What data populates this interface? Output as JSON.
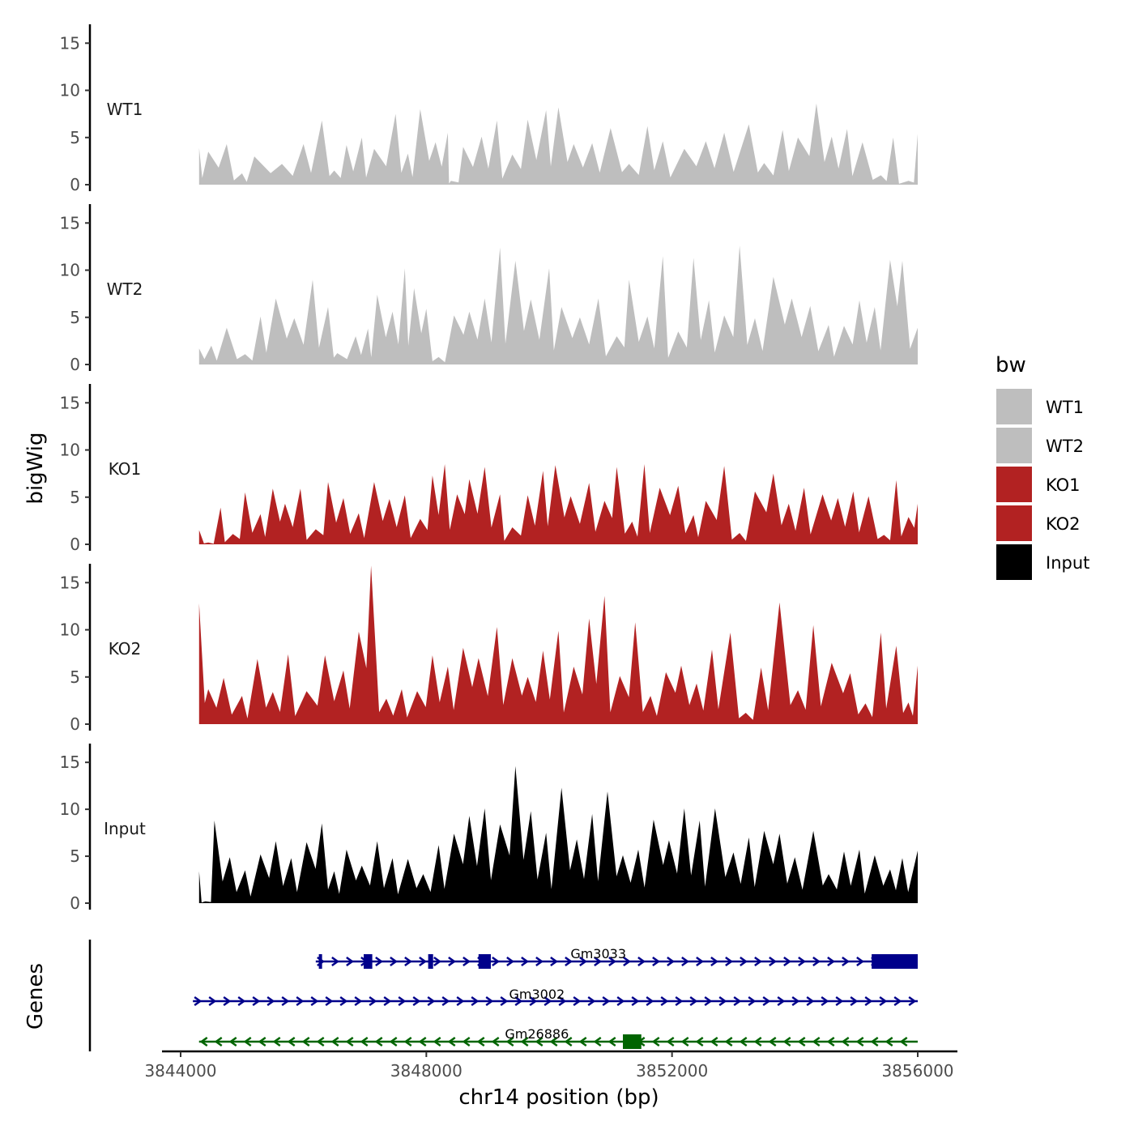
{
  "chart_data": {
    "type": "area",
    "ylabel": "bigWig",
    "gene_panel_label": "Genes",
    "xlabel": "chr14 position (bp)",
    "xlim": [
      3844000,
      3856000
    ],
    "x_data_range": [
      3844300,
      3856000
    ],
    "x_ticks": [
      3844000,
      3848000,
      3852000,
      3856000
    ],
    "x_tick_labels": [
      "3844000",
      "3848000",
      "3852000",
      "3856000"
    ],
    "ylim": [
      0,
      17
    ],
    "y_ticks": [
      0,
      5,
      10,
      15
    ],
    "y_tick_labels": [
      "0",
      "5",
      "10",
      "15"
    ],
    "legend": {
      "title": "bw",
      "position": "right",
      "entries": [
        {
          "label": "WT1",
          "color": "#BEBEBE"
        },
        {
          "label": "WT2",
          "color": "#BEBEBE"
        },
        {
          "label": "KO1",
          "color": "#B22222"
        },
        {
          "label": "KO2",
          "color": "#B22222"
        },
        {
          "label": "Input",
          "color": "#000000"
        }
      ]
    },
    "tracks": [
      {
        "name": "WT1",
        "color": "#BEBEBE",
        "peaks": [
          [
            3844300,
            3.9
          ],
          [
            3844450,
            3.5
          ],
          [
            3844750,
            4.3
          ],
          [
            3845000,
            1.2
          ],
          [
            3845200,
            3.0
          ],
          [
            3845650,
            2.2
          ],
          [
            3846000,
            4.3
          ],
          [
            3846300,
            6.8
          ],
          [
            3846500,
            1.5
          ],
          [
            3846700,
            4.2
          ],
          [
            3846950,
            5.0
          ],
          [
            3847150,
            3.8
          ],
          [
            3847500,
            7.5
          ],
          [
            3847700,
            3.3
          ],
          [
            3847900,
            8.0
          ],
          [
            3848150,
            4.5
          ],
          [
            3848350,
            5.5
          ],
          [
            3848400,
            0.4
          ],
          [
            3848600,
            4.0
          ],
          [
            3848900,
            5.1
          ],
          [
            3849150,
            6.8
          ],
          [
            3849400,
            3.2
          ],
          [
            3849650,
            6.9
          ],
          [
            3849950,
            7.9
          ],
          [
            3850150,
            8.2
          ],
          [
            3850400,
            4.3
          ],
          [
            3850700,
            4.4
          ],
          [
            3851000,
            6.0
          ],
          [
            3851300,
            2.2
          ],
          [
            3851600,
            6.2
          ],
          [
            3851850,
            4.6
          ],
          [
            3852200,
            3.8
          ],
          [
            3852550,
            4.6
          ],
          [
            3852850,
            5.5
          ],
          [
            3853250,
            6.4
          ],
          [
            3853500,
            2.3
          ],
          [
            3853800,
            5.8
          ],
          [
            3854050,
            5.0
          ],
          [
            3854350,
            8.6
          ],
          [
            3854600,
            5.1
          ],
          [
            3854850,
            5.9
          ],
          [
            3855100,
            4.5
          ],
          [
            3855400,
            1.0
          ],
          [
            3855600,
            5.0
          ],
          [
            3855850,
            0.4
          ],
          [
            3856000,
            5.4
          ]
        ]
      },
      {
        "name": "WT2",
        "color": "#BEBEBE",
        "peaks": [
          [
            3844300,
            1.7
          ],
          [
            3844500,
            2.0
          ],
          [
            3844750,
            3.9
          ],
          [
            3845050,
            1.1
          ],
          [
            3845300,
            5.1
          ],
          [
            3845550,
            7.0
          ],
          [
            3845850,
            4.9
          ],
          [
            3846150,
            9.0
          ],
          [
            3846400,
            6.1
          ],
          [
            3846550,
            1.2
          ],
          [
            3846850,
            3.0
          ],
          [
            3847050,
            3.8
          ],
          [
            3847200,
            7.4
          ],
          [
            3847450,
            5.6
          ],
          [
            3847650,
            10.2
          ],
          [
            3847800,
            8.1
          ],
          [
            3848000,
            5.9
          ],
          [
            3848200,
            0.8
          ],
          [
            3848450,
            5.2
          ],
          [
            3848700,
            5.6
          ],
          [
            3848950,
            7.0
          ],
          [
            3849200,
            12.4
          ],
          [
            3849450,
            11.0
          ],
          [
            3849700,
            6.9
          ],
          [
            3850000,
            10.2
          ],
          [
            3850200,
            6.1
          ],
          [
            3850500,
            5.0
          ],
          [
            3850800,
            7.0
          ],
          [
            3851100,
            3.0
          ],
          [
            3851300,
            9.0
          ],
          [
            3851600,
            5.1
          ],
          [
            3851850,
            11.5
          ],
          [
            3852100,
            3.5
          ],
          [
            3852350,
            11.3
          ],
          [
            3852600,
            6.8
          ],
          [
            3852850,
            5.2
          ],
          [
            3853100,
            12.6
          ],
          [
            3853350,
            4.9
          ],
          [
            3853650,
            9.3
          ],
          [
            3853950,
            7.0
          ],
          [
            3854250,
            6.2
          ],
          [
            3854550,
            4.2
          ],
          [
            3854800,
            4.1
          ],
          [
            3855050,
            6.8
          ],
          [
            3855300,
            6.1
          ],
          [
            3855550,
            11.1
          ],
          [
            3855750,
            11.0
          ],
          [
            3856000,
            3.9
          ]
        ]
      },
      {
        "name": "KO1",
        "color": "#B22222",
        "peaks": [
          [
            3844300,
            1.5
          ],
          [
            3844450,
            0.2
          ],
          [
            3844650,
            3.9
          ],
          [
            3844850,
            1.1
          ],
          [
            3845050,
            5.5
          ],
          [
            3845300,
            3.2
          ],
          [
            3845500,
            5.9
          ],
          [
            3845700,
            4.3
          ],
          [
            3845950,
            5.9
          ],
          [
            3846200,
            1.6
          ],
          [
            3846400,
            6.6
          ],
          [
            3846650,
            4.9
          ],
          [
            3846900,
            3.3
          ],
          [
            3847150,
            6.6
          ],
          [
            3847400,
            4.8
          ],
          [
            3847650,
            5.2
          ],
          [
            3847900,
            2.7
          ],
          [
            3848100,
            7.3
          ],
          [
            3848300,
            8.5
          ],
          [
            3848500,
            5.3
          ],
          [
            3848700,
            6.9
          ],
          [
            3848950,
            8.2
          ],
          [
            3849200,
            5.3
          ],
          [
            3849400,
            1.8
          ],
          [
            3849650,
            5.2
          ],
          [
            3849900,
            7.8
          ],
          [
            3850100,
            8.4
          ],
          [
            3850350,
            5.1
          ],
          [
            3850650,
            6.5
          ],
          [
            3850900,
            4.6
          ],
          [
            3851100,
            8.2
          ],
          [
            3851350,
            2.4
          ],
          [
            3851550,
            8.5
          ],
          [
            3851800,
            6.0
          ],
          [
            3852100,
            6.2
          ],
          [
            3852350,
            3.1
          ],
          [
            3852550,
            4.6
          ],
          [
            3852850,
            8.3
          ],
          [
            3853100,
            1.2
          ],
          [
            3853350,
            5.6
          ],
          [
            3853650,
            7.5
          ],
          [
            3853900,
            4.3
          ],
          [
            3854150,
            6.0
          ],
          [
            3854450,
            5.3
          ],
          [
            3854700,
            4.9
          ],
          [
            3854950,
            5.6
          ],
          [
            3855200,
            5.1
          ],
          [
            3855450,
            1.0
          ],
          [
            3855650,
            6.8
          ],
          [
            3855850,
            2.9
          ],
          [
            3856000,
            4.3
          ]
        ]
      },
      {
        "name": "KO2",
        "color": "#B22222",
        "peaks": [
          [
            3844300,
            12.8
          ],
          [
            3844450,
            3.7
          ],
          [
            3844700,
            4.9
          ],
          [
            3845000,
            3.0
          ],
          [
            3845250,
            6.9
          ],
          [
            3845500,
            3.4
          ],
          [
            3845750,
            7.4
          ],
          [
            3846050,
            3.5
          ],
          [
            3846350,
            7.3
          ],
          [
            3846650,
            5.7
          ],
          [
            3846900,
            9.8
          ],
          [
            3847100,
            16.8
          ],
          [
            3847350,
            2.7
          ],
          [
            3847600,
            3.7
          ],
          [
            3847850,
            3.5
          ],
          [
            3848100,
            7.3
          ],
          [
            3848350,
            6.1
          ],
          [
            3848600,
            8.1
          ],
          [
            3848850,
            7.0
          ],
          [
            3849150,
            10.3
          ],
          [
            3849400,
            7.0
          ],
          [
            3849650,
            5.0
          ],
          [
            3849900,
            7.8
          ],
          [
            3850150,
            9.9
          ],
          [
            3850400,
            6.1
          ],
          [
            3850650,
            11.2
          ],
          [
            3850900,
            13.6
          ],
          [
            3851150,
            5.1
          ],
          [
            3851400,
            10.8
          ],
          [
            3851650,
            3.0
          ],
          [
            3851900,
            5.5
          ],
          [
            3852150,
            6.2
          ],
          [
            3852400,
            4.3
          ],
          [
            3852650,
            7.9
          ],
          [
            3852950,
            9.7
          ],
          [
            3853200,
            1.2
          ],
          [
            3853450,
            6.0
          ],
          [
            3853750,
            12.9
          ],
          [
            3854050,
            3.6
          ],
          [
            3854300,
            10.5
          ],
          [
            3854600,
            6.5
          ],
          [
            3854900,
            5.4
          ],
          [
            3855150,
            2.2
          ],
          [
            3855400,
            9.7
          ],
          [
            3855650,
            8.3
          ],
          [
            3855850,
            2.3
          ],
          [
            3856000,
            6.2
          ]
        ]
      },
      {
        "name": "Input",
        "color": "#000000",
        "peaks": [
          [
            3844300,
            3.4
          ],
          [
            3844400,
            0.2
          ],
          [
            3844550,
            8.8
          ],
          [
            3844800,
            4.9
          ],
          [
            3845050,
            3.5
          ],
          [
            3845300,
            5.2
          ],
          [
            3845550,
            6.6
          ],
          [
            3845800,
            4.8
          ],
          [
            3846050,
            6.5
          ],
          [
            3846300,
            8.5
          ],
          [
            3846500,
            3.4
          ],
          [
            3846700,
            5.7
          ],
          [
            3846950,
            4.0
          ],
          [
            3847200,
            6.6
          ],
          [
            3847450,
            4.8
          ],
          [
            3847700,
            4.7
          ],
          [
            3847950,
            3.1
          ],
          [
            3848200,
            6.2
          ],
          [
            3848450,
            7.4
          ],
          [
            3848700,
            9.3
          ],
          [
            3848950,
            10.1
          ],
          [
            3849200,
            8.4
          ],
          [
            3849450,
            14.6
          ],
          [
            3849700,
            9.8
          ],
          [
            3849950,
            7.5
          ],
          [
            3850200,
            12.3
          ],
          [
            3850450,
            6.8
          ],
          [
            3850700,
            9.5
          ],
          [
            3850950,
            11.9
          ],
          [
            3851200,
            5.1
          ],
          [
            3851450,
            5.7
          ],
          [
            3851700,
            8.9
          ],
          [
            3851950,
            6.7
          ],
          [
            3852200,
            10.1
          ],
          [
            3852450,
            8.8
          ],
          [
            3852700,
            10.1
          ],
          [
            3853000,
            5.4
          ],
          [
            3853250,
            7.0
          ],
          [
            3853500,
            7.7
          ],
          [
            3853750,
            7.4
          ],
          [
            3854000,
            4.9
          ],
          [
            3854300,
            7.7
          ],
          [
            3854550,
            3.1
          ],
          [
            3854800,
            5.5
          ],
          [
            3855050,
            5.7
          ],
          [
            3855300,
            5.1
          ],
          [
            3855550,
            3.6
          ],
          [
            3855750,
            4.8
          ],
          [
            3856000,
            5.6
          ]
        ]
      }
    ],
    "genes": [
      {
        "name": "Gm3033",
        "color": "#00008B",
        "strand": "+",
        "start": 3846200,
        "end": 3856000,
        "exons": [
          [
            3846250,
            3846300
          ],
          [
            3846980,
            3847120
          ],
          [
            3848030,
            3848110
          ],
          [
            3848850,
            3849050
          ],
          [
            3855250,
            3856000
          ]
        ]
      },
      {
        "name": "Gm3002",
        "color": "#00008B",
        "strand": "+",
        "start": 3844200,
        "end": 3856000,
        "exons": []
      },
      {
        "name": "Gm26886",
        "color": "#006400",
        "strand": "-",
        "start": 3844300,
        "end": 3856000,
        "exons": [
          [
            3851200,
            3851500
          ]
        ]
      }
    ]
  }
}
